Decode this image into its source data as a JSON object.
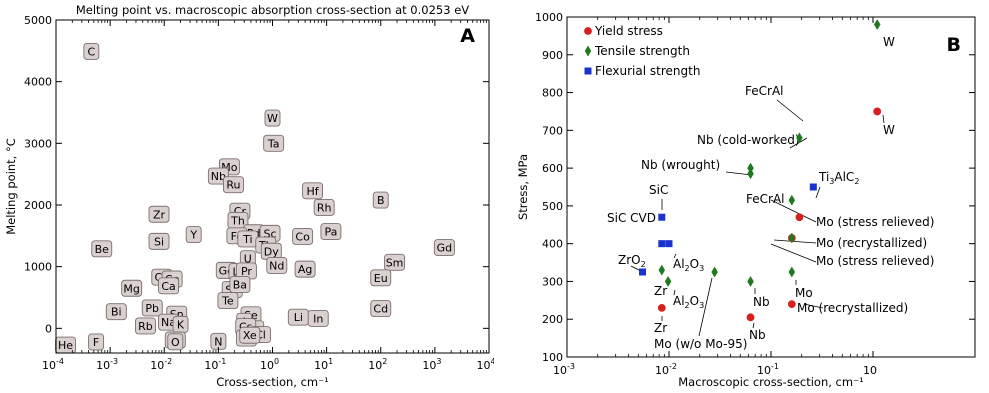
{
  "chart_data": [
    {
      "panel_letter": "A",
      "type": "scatter",
      "title": "Melting point vs. macroscopic absorption cross-section at 0.0253 eV",
      "xlabel": "Cross-section, cm⁻¹",
      "ylabel": "Melting point, °C",
      "xscale": "log",
      "xlim": [
        0.0001,
        10000
      ],
      "ylim": [
        -400,
        5000
      ],
      "x_ticks": [
        {
          "value": 0.0001,
          "base": "10",
          "exp": "-4"
        },
        {
          "value": 0.001,
          "base": "10",
          "exp": "-3"
        },
        {
          "value": 0.01,
          "base": "10",
          "exp": "-2"
        },
        {
          "value": 0.1,
          "base": "10",
          "exp": "-1"
        },
        {
          "value": 1,
          "base": "10",
          "exp": "0"
        },
        {
          "value": 10,
          "base": "10",
          "exp": "1"
        },
        {
          "value": 100,
          "base": "10",
          "exp": "2"
        },
        {
          "value": 1000,
          "base": "10",
          "exp": "3"
        },
        {
          "value": 10000,
          "base": "10",
          "exp": "4"
        }
      ],
      "y_ticks": [
        0,
        1000,
        2000,
        3000,
        4000,
        5000
      ],
      "points": [
        {
          "label": "C",
          "x": 0.00045,
          "y": 4490
        },
        {
          "label": "W",
          "x": 1.0,
          "y": 3410
        },
        {
          "label": "Ta",
          "x": 1.05,
          "y": 3000
        },
        {
          "label": "Mo",
          "x": 0.16,
          "y": 2620
        },
        {
          "label": "Nb",
          "x": 0.1,
          "y": 2470
        },
        {
          "label": "Ru",
          "x": 0.19,
          "y": 2330
        },
        {
          "label": "Hf",
          "x": 5.5,
          "y": 2230
        },
        {
          "label": "B",
          "x": 100,
          "y": 2080
        },
        {
          "label": "Rh",
          "x": 9,
          "y": 1960
        },
        {
          "label": "Zr",
          "x": 0.008,
          "y": 1850
        },
        {
          "label": "Cr",
          "x": 0.25,
          "y": 1900
        },
        {
          "label": "Th",
          "x": 0.23,
          "y": 1750
        },
        {
          "label": "Pd",
          "x": 0.45,
          "y": 1550
        },
        {
          "label": "Sc",
          "x": 0.9,
          "y": 1540
        },
        {
          "label": "Pa",
          "x": 12,
          "y": 1570
        },
        {
          "label": "Y",
          "x": 0.035,
          "y": 1520
        },
        {
          "label": "Fe",
          "x": 0.22,
          "y": 1500
        },
        {
          "label": "Ti",
          "x": 0.35,
          "y": 1450
        },
        {
          "label": "Co",
          "x": 3.6,
          "y": 1490
        },
        {
          "label": "Si",
          "x": 0.008,
          "y": 1410
        },
        {
          "label": "Be",
          "x": 0.0007,
          "y": 1290
        },
        {
          "label": "Tb",
          "x": 0.75,
          "y": 1350
        },
        {
          "label": "Dy",
          "x": 0.95,
          "y": 1250
        },
        {
          "label": "Gd",
          "x": 1500,
          "y": 1310
        },
        {
          "label": "Sm",
          "x": 180,
          "y": 1070
        },
        {
          "label": "Nd",
          "x": 1.2,
          "y": 1020
        },
        {
          "label": "U",
          "x": 0.35,
          "y": 1130
        },
        {
          "label": "Ag",
          "x": 4,
          "y": 960
        },
        {
          "label": "Ge",
          "x": 0.14,
          "y": 940
        },
        {
          "label": "La",
          "x": 0.24,
          "y": 920
        },
        {
          "label": "Pr",
          "x": 0.33,
          "y": 930
        },
        {
          "label": "Eu",
          "x": 100,
          "y": 820
        },
        {
          "label": "Cu",
          "x": 0.009,
          "y": 830
        },
        {
          "label": "Ce",
          "x": 0.014,
          "y": 800
        },
        {
          "label": "Ca",
          "x": 0.012,
          "y": 690
        },
        {
          "label": "Mg",
          "x": 0.0025,
          "y": 650
        },
        {
          "label": "Sb",
          "x": 0.18,
          "y": 630
        },
        {
          "label": "Ba",
          "x": 0.25,
          "y": 710
        },
        {
          "label": "Te",
          "x": 0.15,
          "y": 450
        },
        {
          "label": "Pb",
          "x": 0.006,
          "y": 330
        },
        {
          "label": "Bi",
          "x": 0.0013,
          "y": 270
        },
        {
          "label": "Cd",
          "x": 100,
          "y": 320
        },
        {
          "label": "Sn",
          "x": 0.017,
          "y": 230
        },
        {
          "label": "Li",
          "x": 3,
          "y": 180
        },
        {
          "label": "In",
          "x": 7,
          "y": 160
        },
        {
          "label": "Se",
          "x": 0.4,
          "y": 220
        },
        {
          "label": "Na",
          "x": 0.012,
          "y": 100
        },
        {
          "label": "K",
          "x": 0.02,
          "y": 64
        },
        {
          "label": "Rb",
          "x": 0.0045,
          "y": 39
        },
        {
          "label": "I",
          "x": 0.3,
          "y": 114
        },
        {
          "label": "Br",
          "x": 0.45,
          "y": -7
        },
        {
          "label": "Cs",
          "x": 0.32,
          "y": 29
        },
        {
          "label": "Cl",
          "x": 0.6,
          "y": -101
        },
        {
          "label": "Kr",
          "x": 0.33,
          "y": -157
        },
        {
          "label": "Xe",
          "x": 0.38,
          "y": -112
        },
        {
          "label": "Ar",
          "x": 0.016,
          "y": -189
        },
        {
          "label": "O",
          "x": 0.016,
          "y": -218
        },
        {
          "label": "N",
          "x": 0.1,
          "y": -210
        },
        {
          "label": "F",
          "x": 0.00055,
          "y": -220
        },
        {
          "label": "He",
          "x": 0.00015,
          "y": -272
        }
      ]
    },
    {
      "panel_letter": "B",
      "type": "scatter",
      "title": "",
      "xlabel": "Macroscopic cross-section, cm⁻¹",
      "ylabel": "Stress, MPa",
      "xscale": "log",
      "xlim": [
        0.001,
        10
      ],
      "ylim": [
        100,
        1000
      ],
      "x_ticks": [
        {
          "value": 0.001,
          "base": "10",
          "exp": "-3"
        },
        {
          "value": 0.01,
          "base": "10",
          "exp": "-2"
        },
        {
          "value": 0.1,
          "base": "10",
          "exp": "-1"
        },
        {
          "value": 1,
          "base": "10",
          "exp": ""
        }
      ],
      "y_ticks": [
        100,
        200,
        300,
        400,
        500,
        600,
        700,
        800,
        900,
        1000
      ],
      "legend": {
        "placement": "top-left",
        "entries": [
          {
            "name": "Yield stress",
            "marker": "circle",
            "color": "#d62020"
          },
          {
            "name": "Tensile strength",
            "marker": "diamond",
            "color": "#1f7a1f"
          },
          {
            "name": "Flexurial strength",
            "marker": "square",
            "color": "#1a33cc"
          }
        ]
      },
      "series": [
        {
          "name": "Yield stress",
          "marker": "circle",
          "color": "#d62020",
          "points": [
            {
              "x": 1.1,
              "y": 750
            },
            {
              "x": 0.19,
              "y": 470
            },
            {
              "x": 0.16,
              "y": 415
            },
            {
              "x": 0.16,
              "y": 240
            },
            {
              "x": 0.063,
              "y": 205
            },
            {
              "x": 0.0085,
              "y": 230
            }
          ]
        },
        {
          "name": "Tensile strength",
          "marker": "diamond",
          "color": "#1f7a1f",
          "points": [
            {
              "x": 1.1,
              "y": 980
            },
            {
              "x": 0.19,
              "y": 680
            },
            {
              "x": 0.063,
              "y": 600
            },
            {
              "x": 0.063,
              "y": 585
            },
            {
              "x": 0.16,
              "y": 515
            },
            {
              "x": 0.16,
              "y": 415
            },
            {
              "x": 0.16,
              "y": 325
            },
            {
              "x": 0.028,
              "y": 325
            },
            {
              "x": 0.063,
              "y": 300
            },
            {
              "x": 0.0085,
              "y": 330
            },
            {
              "x": 0.0098,
              "y": 300
            }
          ]
        },
        {
          "name": "Flexurial strength",
          "marker": "square",
          "color": "#1a33cc",
          "points": [
            {
              "x": 0.26,
              "y": 550
            },
            {
              "x": 0.0085,
              "y": 470
            },
            {
              "x": 0.0085,
              "y": 400
            },
            {
              "x": 0.01,
              "y": 400
            },
            {
              "x": 0.0055,
              "y": 325
            }
          ]
        }
      ],
      "annotations": [
        {
          "text": "W",
          "sub": "",
          "post": ""
        },
        {
          "text": "W",
          "sub": "",
          "post": ""
        },
        {
          "text": "FeCrAl",
          "sub": "",
          "post": ""
        },
        {
          "text": "Nb (cold-worked)",
          "sub": "",
          "post": ""
        },
        {
          "text": "Nb (wrought)",
          "sub": "",
          "post": ""
        },
        {
          "text": "Ti",
          "sub": "3",
          "post": "AlC",
          "sub2": "2"
        },
        {
          "text": "SiC",
          "sub": "",
          "post": ""
        },
        {
          "text": "FeCrAl",
          "sub": "",
          "post": ""
        },
        {
          "text": "Mo (stress relieved)",
          "sub": "",
          "post": ""
        },
        {
          "text": "SiC CVD",
          "sub": "",
          "post": ""
        },
        {
          "text": "Mo (recrystallized)",
          "sub": "",
          "post": ""
        },
        {
          "text": "Mo (stress relieved)",
          "sub": "",
          "post": ""
        },
        {
          "text": "Al",
          "sub": "2",
          "post": "O",
          "sub2": "3"
        },
        {
          "text": "ZrO",
          "sub": "2",
          "post": ""
        },
        {
          "text": "Zr",
          "sub": "",
          "post": ""
        },
        {
          "text": "Al",
          "sub": "2",
          "post": "O",
          "sub2": "3"
        },
        {
          "text": "Nb",
          "sub": "",
          "post": ""
        },
        {
          "text": "Mo",
          "sub": "",
          "post": ""
        },
        {
          "text": "Mo (recrystallized)",
          "sub": "",
          "post": ""
        },
        {
          "text": "Zr",
          "sub": "",
          "post": ""
        },
        {
          "text": "Nb",
          "sub": "",
          "post": ""
        },
        {
          "text": "Mo (w/o Mo-95)",
          "sub": "",
          "post": ""
        }
      ]
    }
  ]
}
